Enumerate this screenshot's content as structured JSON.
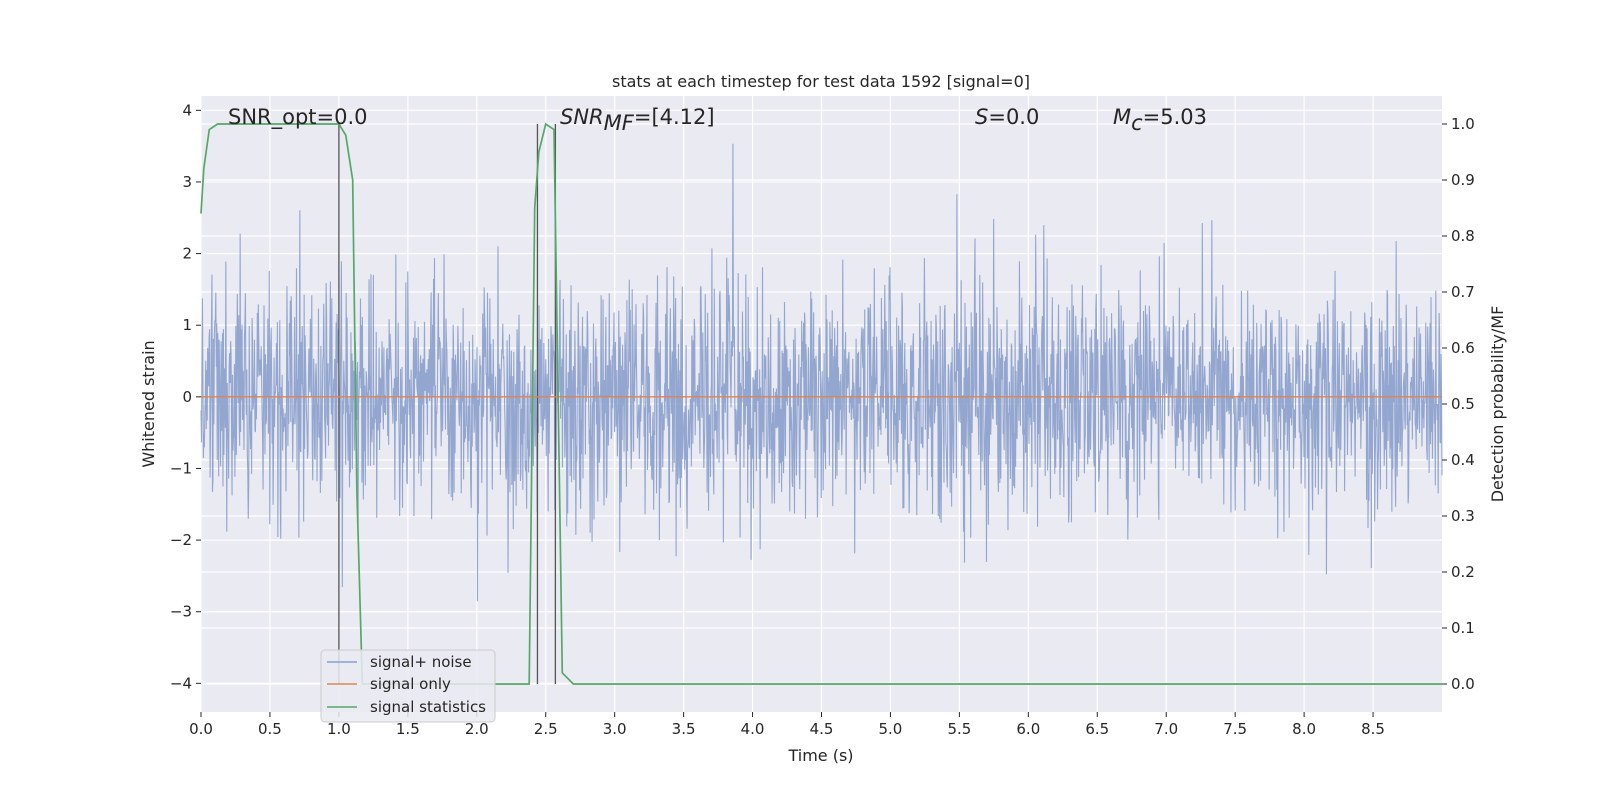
{
  "chart_data": {
    "type": "line",
    "title": "stats at each timestep for test data 1592 [signal=0]",
    "xlabel": "Time (s)",
    "ylabel_left": "Whitened strain",
    "ylabel_right": "Detection probability/MF",
    "xlim": [
      0,
      9.0
    ],
    "ylim_left": [
      -4.4,
      4.2
    ],
    "ylim_right": [
      -0.05,
      1.05
    ],
    "x_ticks": [
      0.0,
      0.5,
      1.0,
      1.5,
      2.0,
      2.5,
      3.0,
      3.5,
      4.0,
      4.5,
      5.0,
      5.5,
      6.0,
      6.5,
      7.0,
      7.5,
      8.0,
      8.5
    ],
    "x_tick_labels": [
      "0.0",
      "0.5",
      "1.0",
      "1.5",
      "2.0",
      "2.5",
      "3.0",
      "3.5",
      "4.0",
      "4.5",
      "5.0",
      "5.5",
      "6.0",
      "6.5",
      "7.0",
      "7.5",
      "8.0",
      "8.5"
    ],
    "y_left_ticks": [
      4,
      3,
      2,
      1,
      0,
      -1,
      -2,
      -3,
      -4
    ],
    "y_left_tick_labels": [
      "4",
      "3",
      "2",
      "1",
      "0",
      "−1",
      "−2",
      "−3",
      "−4"
    ],
    "y_right_ticks": [
      1.0,
      0.9,
      0.8,
      0.7,
      0.6,
      0.5,
      0.4,
      0.3,
      0.2,
      0.1,
      0.0
    ],
    "y_right_tick_labels": [
      "1.0",
      "0.9",
      "0.8",
      "0.7",
      "0.6",
      "0.5",
      "0.4",
      "0.3",
      "0.2",
      "0.1",
      "0.0"
    ],
    "annotations": [
      {
        "id": "snr-opt",
        "text": "SNR_opt=0.0",
        "x": 0.2,
        "italic": false
      },
      {
        "id": "snr-mf",
        "parts": [
          "SNR",
          "MF",
          "=[4.12]"
        ],
        "x": 2.6
      },
      {
        "id": "s-stat",
        "parts": [
          "S",
          "=0.0"
        ],
        "x": 5.6
      },
      {
        "id": "mc",
        "parts": [
          "M",
          "c",
          "=5.03"
        ],
        "x": 6.6
      }
    ],
    "vertical_markers_x": [
      1.0,
      2.44,
      2.57
    ],
    "series": [
      {
        "name": "signal+ noise",
        "color": "#8a9fcc",
        "axis": "left",
        "kind": "noise",
        "std": 0.78,
        "duration": 9.0
      },
      {
        "name": "signal only",
        "color": "#dd8452",
        "axis": "left",
        "kind": "flat",
        "value": 0.0
      },
      {
        "name": "signal statistics",
        "color": "#55a868",
        "axis": "right",
        "x": [
          0.0,
          0.02,
          0.06,
          0.12,
          0.2,
          0.4,
          0.6,
          0.8,
          1.0,
          1.05,
          1.1,
          1.13,
          1.17,
          1.3,
          1.5,
          1.8,
          2.1,
          2.3,
          2.38,
          2.42,
          2.45,
          2.5,
          2.56,
          2.6,
          2.62,
          2.7,
          3.0,
          4.0,
          5.0,
          6.0,
          7.0,
          8.0,
          9.0
        ],
        "y": [
          0.84,
          0.92,
          0.99,
          1.0,
          1.0,
          1.0,
          1.0,
          1.0,
          1.0,
          0.98,
          0.9,
          0.35,
          0.0,
          0.0,
          0.0,
          0.0,
          0.0,
          0.0,
          0.0,
          0.85,
          0.95,
          1.0,
          0.99,
          0.35,
          0.02,
          0.0,
          0.0,
          0.0,
          0.0,
          0.0,
          0.0,
          0.0,
          0.0
        ]
      }
    ],
    "legend": {
      "position": "lower-left",
      "entries": [
        "signal+ noise",
        "signal only",
        "signal statistics"
      ]
    },
    "grid": true
  }
}
